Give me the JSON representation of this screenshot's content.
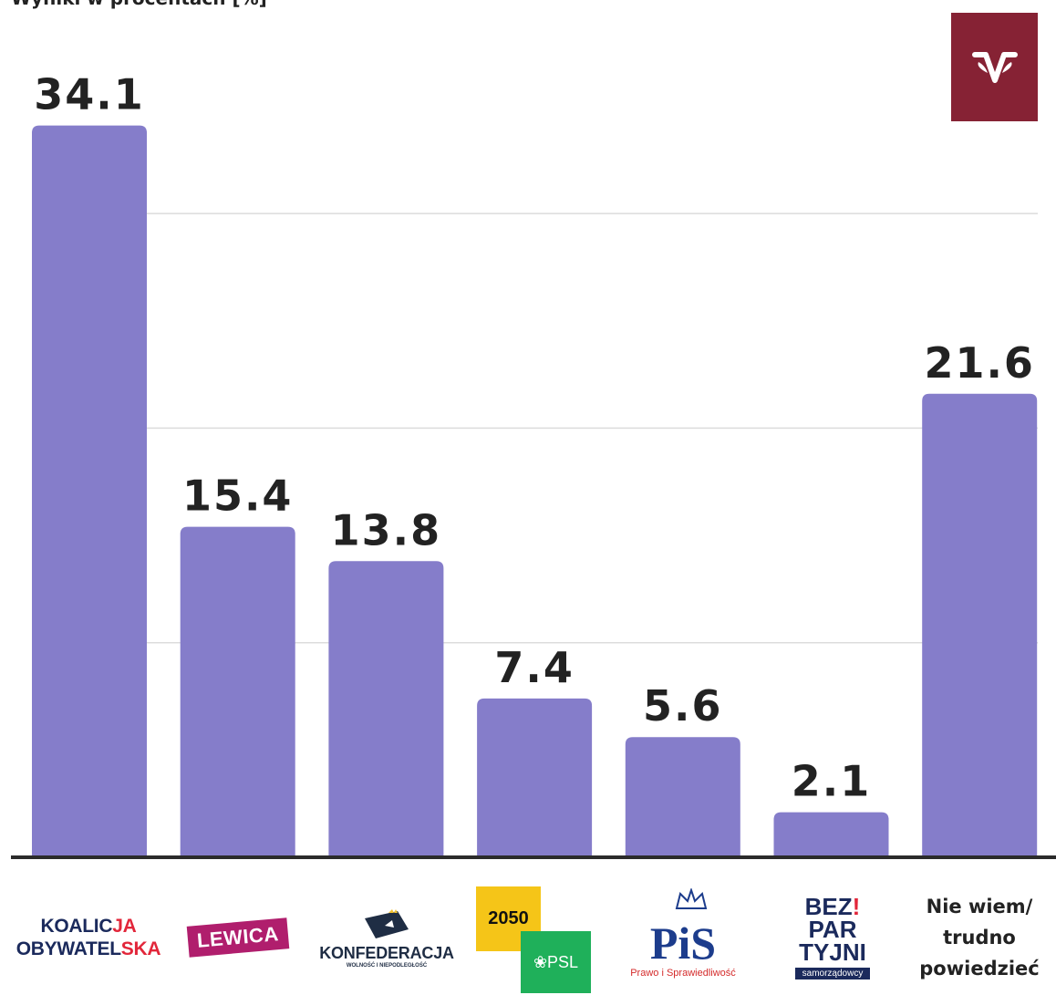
{
  "title": "Wyniki w procentach [%]",
  "chart_data": {
    "type": "bar",
    "categories": [
      "KOALICJA OBYWATELSKA",
      "LEWICA",
      "KONFEDERACJA",
      "2050 / PSL",
      "PiS",
      "BEZPARTYJNI samorządowcy",
      "Nie wiem/ trudno powiedzieć"
    ],
    "values": [
      34.1,
      15.4,
      13.8,
      7.4,
      5.6,
      2.1,
      21.6
    ],
    "value_labels": [
      "34.1",
      "15.4",
      "13.8",
      "7.4",
      "5.6",
      "2.1",
      "21.6"
    ],
    "ylim": [
      0,
      40
    ],
    "grid": true,
    "bar_color": "#857dca",
    "axis_color": "#2b2b2b",
    "gridline_color": "#dcdcdc"
  },
  "logos": {
    "ko_line1_a": "KOALIC",
    "ko_line1_b": "JA",
    "ko_line2_a": "OBYWATEL",
    "ko_line2_b": "SKA",
    "lewica": "LEWICA",
    "konfederacja": "KONFEDERACJA",
    "konfederacja_sub": "WOLNOŚĆ I NIEPODLEGŁOŚĆ",
    "polska2050": "2050",
    "psl": "❀PSL",
    "pis": "PiS",
    "pis_sub": "Prawo i Sprawiedliwość",
    "bez_1": "BEZ",
    "bez_2": "PAR",
    "bez_3": "TYJNI",
    "bez_excl": "!",
    "bez_sub": "samorządowcy",
    "niewiem_1": "Nie wiem/",
    "niewiem_2": "trudno",
    "niewiem_3": "powiedzieć"
  },
  "brand": {
    "color": "#862234",
    "logo": "vox-populi-logo"
  }
}
